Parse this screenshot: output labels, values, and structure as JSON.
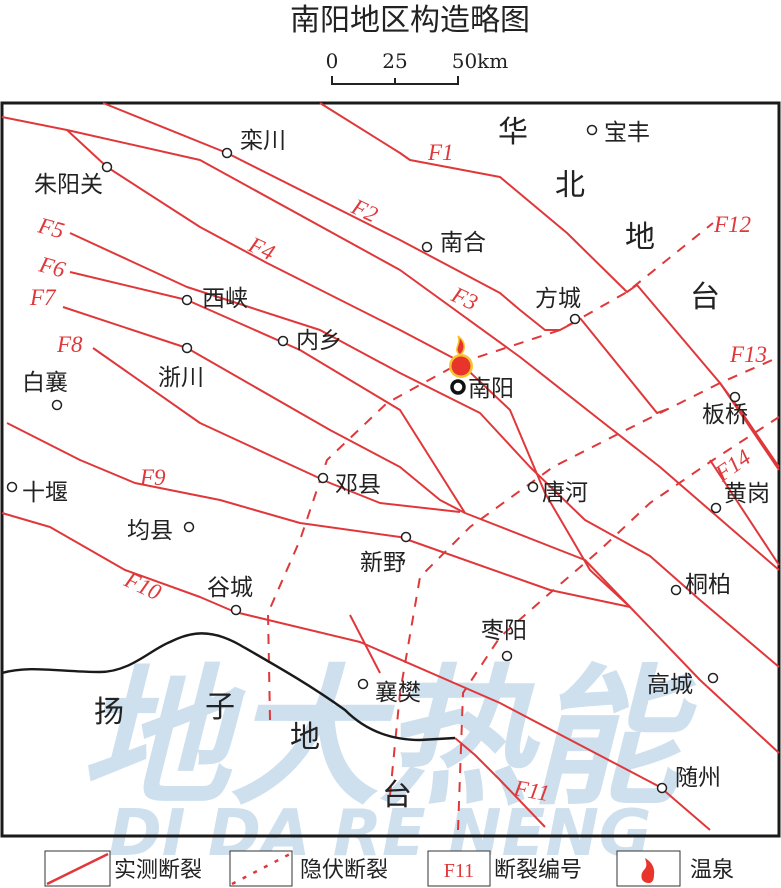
{
  "title": "南阳地区构造略图",
  "scale": {
    "ticks": [
      "0",
      "25",
      "50km"
    ]
  },
  "colors": {
    "fault": "#e0383a",
    "boundary": "#1a1a1a",
    "hot_spring": "#e8342a",
    "watermark": "#c9dced"
  },
  "regions": {
    "north": [
      "华",
      "北",
      "地",
      "台"
    ],
    "south": [
      "扬",
      "子",
      "地",
      "台"
    ]
  },
  "faults": [
    "F1",
    "F2",
    "F3",
    "F4",
    "F5",
    "F6",
    "F7",
    "F8",
    "F9",
    "F10",
    "F11",
    "F12",
    "F13",
    "F14"
  ],
  "places": [
    "栾川",
    "朱阳关",
    "宝丰",
    "南合",
    "方城",
    "西峡",
    "内乡",
    "浙川",
    "白襄",
    "南阳",
    "十堰",
    "邓县",
    "唐河",
    "黄岗",
    "板桥",
    "均县",
    "新野",
    "桐柏",
    "谷城",
    "枣阳",
    "襄樊",
    "高城",
    "随州"
  ],
  "watermark": {
    "cn": "地大热能",
    "en": "DI DA RE NENG"
  },
  "legend": [
    {
      "icon": "solid-fault-line",
      "label": "实测断裂"
    },
    {
      "icon": "dashed-fault-line",
      "label": "隐伏断裂"
    },
    {
      "icon": "fault-number",
      "sample": "F11",
      "label": "断裂编号"
    },
    {
      "icon": "hot-spring",
      "label": "温泉"
    }
  ]
}
